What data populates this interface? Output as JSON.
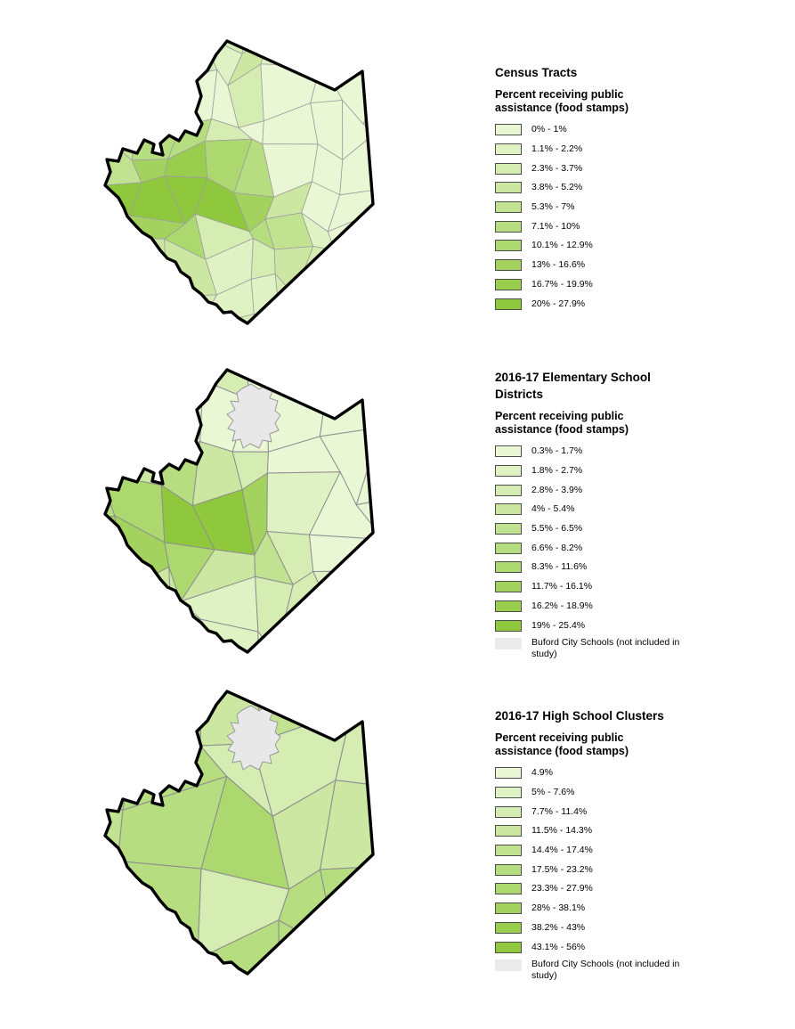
{
  "document": {
    "background": "#FFFFFF",
    "county": "single county boundary repeated on all three maps"
  },
  "legend_colors": {
    "ramp": [
      "#E9F7D5",
      "#DFF2C4",
      "#D5EDB3",
      "#CBE7A2",
      "#C1E291",
      "#B7DD81",
      "#ADD870",
      "#A3D25F",
      "#99CD4E",
      "#8FC83D"
    ],
    "excluded_fill": "#EBEBEB",
    "map_excluded_fill": "#E8E8E8",
    "swatch_border": "#4D4D4D",
    "county_outline": "#000000",
    "tract_border": "#9E9E9E",
    "district_border": "#8F8F8F"
  },
  "panels": [
    {
      "id": "census-tracts",
      "title": "Census Tracts",
      "subtitle": "Percent receiving public assistance (food stamps)",
      "classes": [
        "0% - 1%",
        "1.1% - 2.2%",
        "2.3% - 3.7%",
        "3.8% - 5.2%",
        "5.3% - 7%",
        "7.1% - 10%",
        "10.1% - 12.9%",
        "13% - 16.6%",
        "16.7% - 19.9%",
        "20% - 27.9%"
      ],
      "excluded_label": ""
    },
    {
      "id": "elementary-school-districts",
      "title": "2016-17 Elementary School Districts",
      "subtitle": "Percent receiving public assistance (food stamps)",
      "classes": [
        "0.3% - 1.7%",
        "1.8% - 2.7%",
        "2.8% - 3.9%",
        "4% - 5.4%",
        "5.5% - 6.5%",
        "6.6% - 8.2%",
        "8.3% - 11.6%",
        "11.7% - 16.1%",
        "16.2% - 18.9%",
        "19% - 25.4%"
      ],
      "excluded_label": "Buford City Schools (not included in study)"
    },
    {
      "id": "high-school-clusters",
      "title": "2016-17 High School Clusters",
      "subtitle": "Percent receiving public assistance (food stamps)",
      "classes": [
        "4.9%",
        "5% - 7.6%",
        "7.7% - 11.4%",
        "11.5% - 14.3%",
        "14.4% - 17.4%",
        "17.5% - 23.2%",
        "23.3% - 27.9%",
        "28% - 38.1%",
        "38.2% - 43%",
        "43.1% - 56%"
      ],
      "excluded_label": "Buford City Schools (not included in study)"
    }
  ]
}
